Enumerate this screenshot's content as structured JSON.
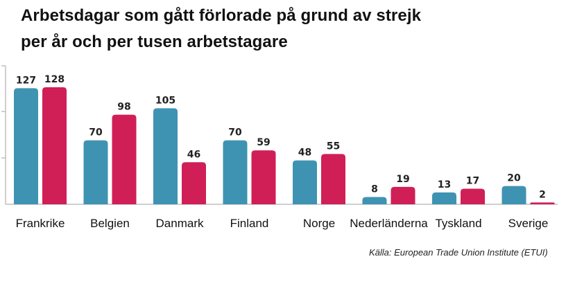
{
  "title": {
    "line1": "Arbetsdagar som gått förlorade på grund av strejk",
    "line2": "per år och per tusen arbetstagare"
  },
  "source": "Källa: European Trade Union Institute (ETUI)",
  "colors": {
    "series1": "#3f93b2",
    "series2": "#d01f57",
    "axis": "#bfbfbf"
  },
  "chart_data": {
    "type": "bar",
    "title": "Arbetsdagar som gått förlorade på grund av strejk per år och per tusen arbetstagare",
    "categories": [
      "Frankrike",
      "Belgien",
      "Danmark",
      "Finland",
      "Norge",
      "Nederländerna",
      "Tyskland",
      "Sverige"
    ],
    "series": [
      {
        "values": [
          127,
          70,
          105,
          70,
          48,
          8,
          13,
          20
        ],
        "color": "#3f93b2"
      },
      {
        "values": [
          128,
          98,
          46,
          59,
          55,
          19,
          17,
          2
        ],
        "color": "#d01f57"
      }
    ],
    "ylim": [
      0,
      150
    ],
    "data_labels": true,
    "grid": false,
    "legend": "none"
  }
}
